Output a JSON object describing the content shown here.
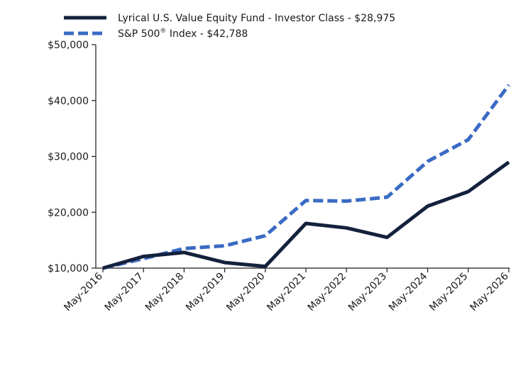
{
  "chart_data": {
    "type": "line",
    "x": [
      "May-2016",
      "May-2017",
      "May-2018",
      "May-2019",
      "May-2020",
      "May-2021",
      "May-2022",
      "May-2023",
      "May-2024",
      "May-2025",
      "May-2026"
    ],
    "ylim": [
      10000,
      50000
    ],
    "yticks": [
      10000,
      20000,
      30000,
      40000,
      50000
    ],
    "ytick_labels": [
      "$10,000",
      "$20,000",
      "$30,000",
      "$40,000",
      "$50,000"
    ],
    "legend_position": "top-left",
    "grid": false,
    "series": [
      {
        "name": "Lyrical U.S. Value Equity Fund - Investor Class - $28,975",
        "color": "#14213d",
        "style": "solid",
        "values": [
          10000,
          12100,
          12800,
          11000,
          10300,
          18000,
          17200,
          15500,
          21100,
          23700,
          28975
        ]
      },
      {
        "name_parts": [
          "S&P 500",
          "®",
          " Index - $42,788"
        ],
        "color": "#3a6bc4",
        "style": "dashed",
        "values": [
          10000,
          11700,
          13500,
          14000,
          15800,
          22100,
          22000,
          22700,
          29100,
          33000,
          42788
        ]
      }
    ]
  }
}
